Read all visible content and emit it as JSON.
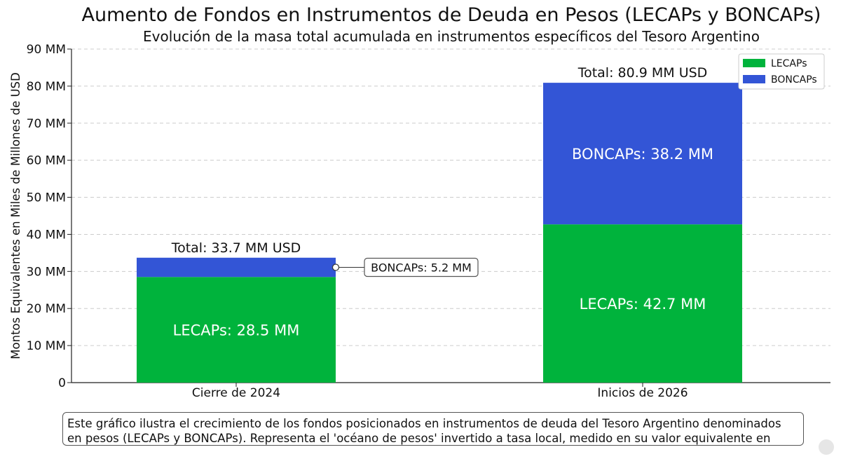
{
  "chart_data": {
    "type": "bar",
    "stacked": true,
    "title": "Aumento de Fondos en Instrumentos de Deuda en Pesos (LECAPs y BONCAPs)",
    "subtitle": "Evolución de la masa total acumulada en instrumentos específicos del Tesoro Argentino",
    "ylabel": "Montos Equivalentes en Miles de Millones de USD",
    "xlabel": "",
    "categories": [
      "Cierre de 2024",
      "Inicios de 2026"
    ],
    "series": [
      {
        "name": "LECAPs",
        "values": [
          28.5,
          42.7
        ],
        "color": "#00b33c"
      },
      {
        "name": "BONCAPs",
        "values": [
          5.2,
          38.2
        ],
        "color": "#3355d6"
      }
    ],
    "ylim": [
      0,
      90
    ],
    "yticks": [
      0,
      10,
      20,
      30,
      40,
      50,
      60,
      70,
      80,
      90
    ],
    "ytick_labels": [
      "0",
      "10 MM",
      "20 MM",
      "30 MM",
      "40 MM",
      "50 MM",
      "60 MM",
      "70 MM",
      "80 MM",
      "90 MM"
    ],
    "grid": true,
    "legend_position": "top-right",
    "segment_labels": [
      [
        "LECAPs: 28.5 MM",
        "LECAPs: 42.7 MM"
      ],
      [
        "",
        "BONCAPs: 38.2 MM"
      ]
    ],
    "callout": {
      "text": "BONCAPs: 5.2 MM",
      "category": "Cierre de 2024",
      "series": "BONCAPs"
    },
    "totals": [
      "Total: 33.7 MM USD",
      "Total: 80.9 MM USD"
    ]
  },
  "caption": "Este gráfico ilustra el crecimiento de los fondos posicionados en instrumentos de deuda del Tesoro Argentino denominados en pesos (LECAPs y BONCAPs). Representa el 'océano de pesos' invertido a tasa local, medido en su valor equivalente en dólares."
}
